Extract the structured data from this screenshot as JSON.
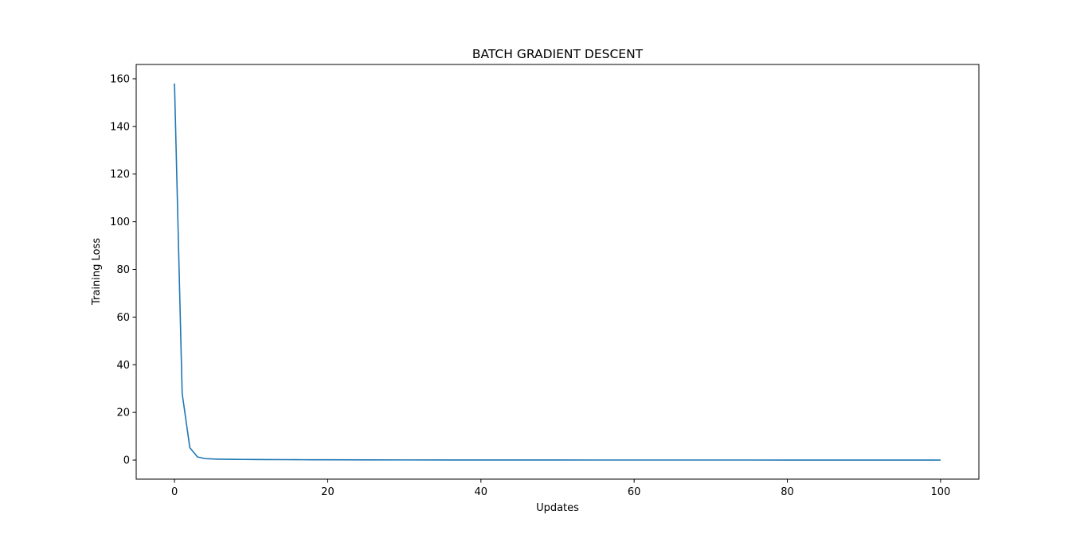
{
  "chart_data": {
    "type": "line",
    "title": "BATCH GRADIENT DESCENT",
    "xlabel": "Updates",
    "ylabel": "Training Loss",
    "xlim": [
      -5,
      105
    ],
    "ylim": [
      -8,
      166
    ],
    "xticks": [
      0,
      20,
      40,
      60,
      80,
      100
    ],
    "yticks": [
      0,
      20,
      40,
      60,
      80,
      100,
      120,
      140,
      160
    ],
    "grid": false,
    "line_color": "#1f77b4",
    "series": [
      {
        "x": [
          0,
          1,
          2,
          3,
          4,
          5,
          6,
          7,
          8,
          9,
          10,
          12,
          14,
          16,
          18,
          20,
          25,
          30,
          35,
          40,
          45,
          50,
          55,
          60,
          65,
          70,
          75,
          80,
          85,
          90,
          95,
          100
        ],
        "values": [
          158,
          28,
          5.2,
          1.3,
          0.6,
          0.45,
          0.38,
          0.33,
          0.3,
          0.27,
          0.25,
          0.21,
          0.18,
          0.15,
          0.13,
          0.11,
          0.08,
          0.06,
          0.05,
          0.04,
          0.03,
          0.025,
          0.02,
          0.017,
          0.015,
          0.013,
          0.011,
          0.01,
          0.009,
          0.008,
          0.007,
          0.006
        ]
      }
    ]
  }
}
